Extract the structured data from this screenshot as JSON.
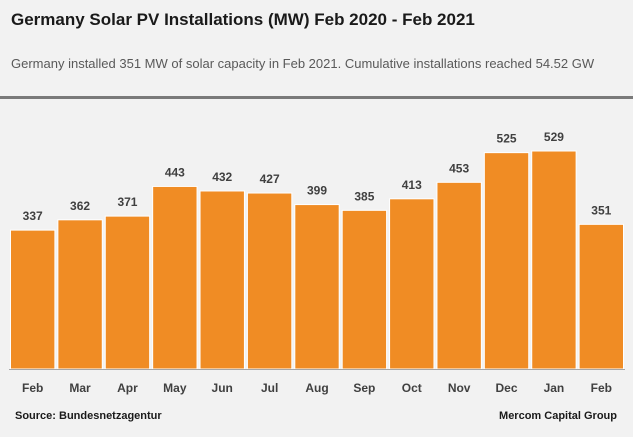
{
  "header": {
    "title": "Germany  Solar PV Installations (MW) Feb 2020 - Feb 2021",
    "subtitle": "Germany installed 351 MW of solar capacity in Feb 2021. Cumulative installations reached 54.52 GW"
  },
  "footer": {
    "source": "Source: Bundesnetzagentur",
    "organization": "Mercom Capital Group"
  },
  "chart_data": {
    "type": "bar",
    "categories": [
      "Feb",
      "Mar",
      "Apr",
      "May",
      "Jun",
      "Jul",
      "Aug",
      "Sep",
      "Oct",
      "Nov",
      "Dec",
      "Jan",
      "Feb"
    ],
    "values": [
      337,
      362,
      371,
      443,
      432,
      427,
      399,
      385,
      413,
      453,
      525,
      529,
      351
    ],
    "xlabel": "",
    "ylabel": "",
    "ylim": [
      0,
      600
    ],
    "grid": false,
    "legend": "none",
    "data_labels": true,
    "colors": {
      "bar": "#f08c24",
      "bar_edge": "#ffffff",
      "axis": "#a6a6a6",
      "label": "#404040"
    }
  }
}
